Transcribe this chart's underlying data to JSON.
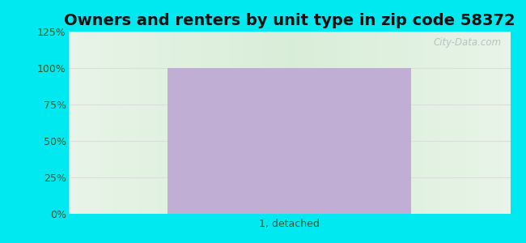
{
  "title": "Owners and renters by unit type in zip code 58372",
  "categories": [
    "1, detached"
  ],
  "values": [
    100
  ],
  "bar_color": "#c0aed4",
  "bar_width": 0.55,
  "ylim": [
    0,
    125
  ],
  "yticks": [
    0,
    25,
    50,
    75,
    100,
    125
  ],
  "ytick_labels": [
    "0%",
    "25%",
    "50%",
    "75%",
    "100%",
    "125%"
  ],
  "title_fontsize": 14,
  "tick_fontsize": 9,
  "label_fontsize": 9,
  "bg_outer_color": "#00e8f0",
  "watermark": "City-Data.com",
  "grid_color": "#dddddd",
  "text_color": "#2a5a2a"
}
